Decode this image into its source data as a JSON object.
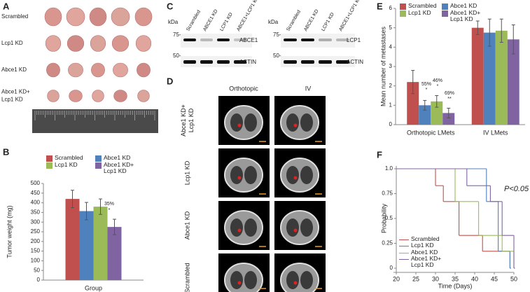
{
  "panel_labels": [
    "A",
    "B",
    "C",
    "D",
    "E",
    "F"
  ],
  "panel_a": {
    "rows": [
      [
        "Scrambled"
      ],
      [
        "Lcp1 KD"
      ],
      [
        "Abce1 KD"
      ],
      [
        "Abce1 KD+",
        "Lcp1 KD"
      ]
    ]
  },
  "panel_c": {
    "unit": "kDa",
    "markers": [
      "75-",
      "50-"
    ],
    "blots": [
      {
        "lanes": [
          "Scrambled",
          "ABCE1 KD",
          "LCP1 KD",
          "ABCE1+LCP1 KD"
        ],
        "bands": [
          "ABCE1",
          "ACTIN"
        ]
      },
      {
        "lanes": [
          "Scrambled",
          "ABCE1 KD",
          "LCP1 KD",
          "ABCE1+LCP1 KD"
        ],
        "bands": [
          "LCP1",
          "ACTIN"
        ]
      }
    ]
  },
  "panel_d": {
    "columns": [
      "Orthotopic",
      "IV"
    ],
    "rows": [
      [
        "Abce1 KD+",
        "Lcp1 KD"
      ],
      [
        "Lcp1 KD"
      ],
      [
        "Abce1 KD"
      ],
      [
        "Scrambled"
      ]
    ]
  },
  "chart_data": [
    {
      "type": "bar",
      "y_label": "Tumor weight (mg)",
      "x_label": "Group",
      "categories": [
        null
      ],
      "series": [
        {
          "name": "Scrambled",
          "color": "#c0504d",
          "values": [
            420
          ],
          "errors": [
            45
          ]
        },
        {
          "name": "Abce1 KD",
          "color": "#4f81bd",
          "values": [
            357
          ],
          "errors": [
            45
          ]
        },
        {
          "name": "Lcp1 KD",
          "color": "#9bbb59",
          "values": [
            380
          ],
          "errors": [
            40
          ]
        },
        {
          "name": "Abce1 KD+ Lcp1 KD",
          "color": "#8064a2",
          "values": [
            275
          ],
          "errors": [
            40
          ]
        }
      ],
      "annotations": [
        "35%",
        "*"
      ],
      "ylim": [
        0,
        500
      ],
      "yticks": [
        0,
        50,
        100,
        150,
        200,
        250,
        300,
        350,
        400,
        450,
        500
      ],
      "grid": false
    },
    {
      "type": "bar",
      "y_label": "Mean number of metastases",
      "categories": [
        "Orthotopic LMets",
        "IV LMets"
      ],
      "series": [
        {
          "name": "Scrambled",
          "color": "#c0504d",
          "values": [
            2.2,
            5.0
          ],
          "errors": [
            0.6,
            0.35
          ]
        },
        {
          "name": "Abce1 KD",
          "color": "#4f81bd",
          "values": [
            1.0,
            4.75
          ],
          "errors": [
            0.25,
            0.7
          ]
        },
        {
          "name": "Lcp1 KD",
          "color": "#9bbb59",
          "values": [
            1.2,
            4.85
          ],
          "errors": [
            0.3,
            0.6
          ]
        },
        {
          "name": "Abce1 KD+ Lcp1 KD",
          "color": "#8064a2",
          "values": [
            0.6,
            4.4
          ],
          "errors": [
            0.25,
            0.75
          ]
        }
      ],
      "annotations": [
        "55%",
        "*",
        "46%",
        "*",
        "69%",
        "**"
      ],
      "ylim": [
        0,
        6
      ],
      "yticks": [
        0,
        1,
        2,
        3,
        4,
        5,
        6
      ],
      "grid": false
    },
    {
      "type": "step",
      "y_label": "Probability",
      "x_label": "Time (Days)",
      "annotations": [
        "P<0.05"
      ],
      "series": [
        {
          "name": "Scrambled",
          "color": "#c0504d",
          "x": [
            20,
            30,
            32,
            36,
            42,
            49
          ],
          "values": [
            1,
            0.83,
            0.67,
            0.33,
            0.17,
            0
          ]
        },
        {
          "name": "Lcp1 KD",
          "color": "#4f81bd",
          "x": [
            20,
            43,
            46,
            49
          ],
          "values": [
            1,
            0.67,
            0.17,
            0
          ]
        },
        {
          "name": "Abce1 KD",
          "color": "#9bbb59",
          "x": [
            20,
            35,
            41,
            47,
            50
          ],
          "values": [
            1,
            0.67,
            0.33,
            0.17,
            0
          ]
        },
        {
          "name": "Abce1 KD+ Lcp1 KD",
          "color": "#8064a2",
          "x": [
            20,
            38,
            44,
            47,
            50
          ],
          "values": [
            1,
            0.83,
            0.67,
            0.33,
            0
          ]
        }
      ],
      "xlim": [
        20,
        50
      ],
      "xticks": [
        20,
        25,
        30,
        35,
        40,
        45,
        50
      ],
      "ylim": [
        0,
        1
      ],
      "yticks": [
        0,
        0.25,
        0.5,
        0.75,
        {
          "value": 1,
          "label": "1.0"
        }
      ],
      "grid": false
    }
  ]
}
